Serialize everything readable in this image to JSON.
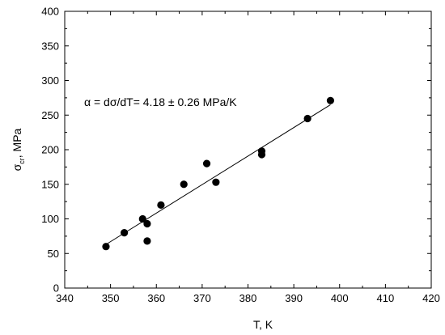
{
  "chart_data": {
    "type": "scatter",
    "xlabel": "T, K",
    "ylabel_main": "σ",
    "ylabel_sub": "cr",
    "ylabel_rest": ", MPa",
    "xlim": [
      340,
      420
    ],
    "ylim": [
      0,
      400
    ],
    "xticks": [
      340,
      350,
      360,
      370,
      380,
      390,
      400,
      410,
      420
    ],
    "yticks": [
      0,
      50,
      100,
      150,
      200,
      250,
      300,
      350,
      400
    ],
    "grid": false,
    "annotation": "α = dσ/dT= 4.18 ± 0.26 MPa/K",
    "points": [
      {
        "x": 349,
        "y": 60
      },
      {
        "x": 353,
        "y": 80
      },
      {
        "x": 357,
        "y": 100
      },
      {
        "x": 358,
        "y": 93
      },
      {
        "x": 358,
        "y": 68
      },
      {
        "x": 361,
        "y": 120
      },
      {
        "x": 366,
        "y": 150
      },
      {
        "x": 371,
        "y": 180
      },
      {
        "x": 373,
        "y": 153
      },
      {
        "x": 383,
        "y": 198
      },
      {
        "x": 383,
        "y": 193
      },
      {
        "x": 393,
        "y": 245
      },
      {
        "x": 398,
        "y": 271
      }
    ],
    "fit_line": {
      "x": [
        349,
        398
      ],
      "y": [
        63,
        265
      ]
    },
    "marker_color": "#000000",
    "line_color": "#000000"
  }
}
